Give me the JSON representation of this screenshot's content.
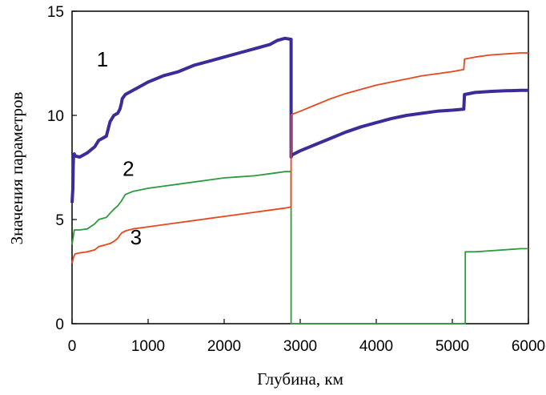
{
  "chart_data": {
    "type": "line",
    "title": "",
    "xlabel": "Глубина, км",
    "ylabel": "Значения параметров",
    "xlim": [
      0,
      6000
    ],
    "ylim": [
      0,
      15
    ],
    "x_ticks": [
      "0",
      "1000",
      "2000",
      "3000",
      "4000",
      "5000",
      "6000"
    ],
    "y_ticks": [
      "0",
      "5",
      "10",
      "15"
    ],
    "grid": false,
    "legend": "none",
    "series": [
      {
        "label_text": "1",
        "color": "#3a2d9a",
        "x": [
          0,
          10,
          15,
          20,
          30,
          40,
          100,
          150,
          200,
          300,
          350,
          450,
          500,
          550,
          600,
          630,
          650,
          660,
          680,
          700,
          800,
          900,
          1000,
          1200,
          1400,
          1600,
          1800,
          2000,
          2200,
          2400,
          2600,
          2700,
          2800,
          2880,
          2880,
          2890,
          3000,
          3200,
          3400,
          3600,
          3800,
          4000,
          4200,
          4400,
          4600,
          4800,
          5000,
          5150,
          5160,
          5300,
          5500,
          5700,
          5900,
          6000
        ],
        "y": [
          5.8,
          6.5,
          7.5,
          8.1,
          8.15,
          8.05,
          8.0,
          8.1,
          8.2,
          8.5,
          8.8,
          9.0,
          9.7,
          10.0,
          10.1,
          10.3,
          10.6,
          10.8,
          10.9,
          11.0,
          11.2,
          11.4,
          11.6,
          11.9,
          12.1,
          12.4,
          12.6,
          12.8,
          13.0,
          13.2,
          13.4,
          13.6,
          13.7,
          13.65,
          8.0,
          8.1,
          8.3,
          8.6,
          8.9,
          9.2,
          9.45,
          9.65,
          9.85,
          10.0,
          10.1,
          10.2,
          10.25,
          10.3,
          11.0,
          11.1,
          11.15,
          11.18,
          11.2,
          11.2
        ]
      },
      {
        "label_text": "2",
        "color": "#2e9a3e",
        "x": [
          0,
          30,
          50,
          100,
          200,
          300,
          350,
          450,
          500,
          550,
          600,
          650,
          700,
          800,
          1000,
          1200,
          1400,
          1600,
          1800,
          2000,
          2200,
          2400,
          2600,
          2800,
          2880,
          2880,
          5170,
          5170,
          5300,
          5500,
          5700,
          5900,
          6000
        ],
        "y": [
          3.8,
          4.5,
          4.5,
          4.5,
          4.55,
          4.8,
          5.0,
          5.1,
          5.3,
          5.5,
          5.65,
          5.9,
          6.2,
          6.35,
          6.5,
          6.6,
          6.7,
          6.8,
          6.9,
          7.0,
          7.05,
          7.1,
          7.2,
          7.3,
          7.3,
          0,
          0,
          3.45,
          3.45,
          3.5,
          3.55,
          3.6,
          3.6
        ]
      },
      {
        "label_text": "3",
        "color": "#e8471e",
        "x": [
          0,
          20,
          40,
          100,
          200,
          300,
          350,
          450,
          500,
          550,
          600,
          650,
          700,
          800,
          1000,
          1200,
          1400,
          1600,
          1800,
          2000,
          2200,
          2400,
          2600,
          2800,
          2880,
          2880,
          2890,
          3000,
          3200,
          3400,
          3600,
          3800,
          4000,
          4200,
          4400,
          4600,
          4800,
          5000,
          5150,
          5160,
          5300,
          5500,
          5700,
          5900,
          6000
        ],
        "y": [
          2.9,
          3.2,
          3.35,
          3.4,
          3.45,
          3.55,
          3.7,
          3.8,
          3.85,
          3.95,
          4.1,
          4.35,
          4.45,
          4.55,
          4.65,
          4.75,
          4.85,
          4.95,
          5.05,
          5.15,
          5.25,
          5.35,
          5.45,
          5.55,
          5.6,
          10.0,
          10.05,
          10.2,
          10.5,
          10.8,
          11.05,
          11.25,
          11.45,
          11.6,
          11.75,
          11.9,
          12.0,
          12.1,
          12.2,
          12.7,
          12.8,
          12.9,
          12.95,
          13.0,
          13.0
        ]
      }
    ],
    "series_labels": [
      {
        "text": "1",
        "x": 400,
        "y": 12.35
      },
      {
        "text": "2",
        "x": 740,
        "y": 7.1
      },
      {
        "text": "3",
        "x": 840,
        "y": 3.8
      }
    ]
  }
}
